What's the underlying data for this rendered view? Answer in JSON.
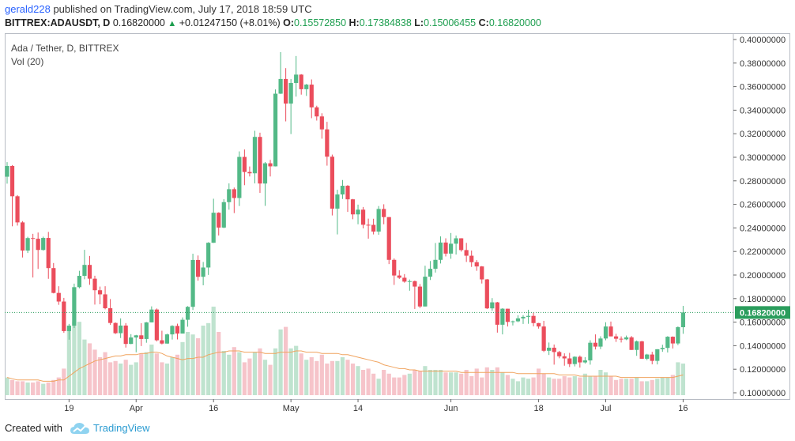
{
  "header": {
    "author": "gerald228",
    "published_text": "published on TradingView.com, July 17, 2018 18:59 UTC",
    "symbol_line": "BITTREX:ADAUSDT, D",
    "last_price": "0.16820000",
    "change_arrow": "▲",
    "change": "+0.01247150 (+8.01%)",
    "o_label": "O:",
    "o_value": "0.15572850",
    "h_label": "H:",
    "h_value": "0.17384838",
    "l_label": "L:",
    "l_value": "0.15006455",
    "c_label": "C:",
    "c_value": "0.16820000"
  },
  "overlay": {
    "title": "Ada / Tether, D, BITTREX",
    "volume_label": "Vol (20)"
  },
  "footer": {
    "created_with": "Created with",
    "brand": "TradingView"
  },
  "colors": {
    "up": "#26a69a",
    "up_candle": "#53b987",
    "down_candle": "#eb4d5c",
    "vol_up": "#bfe3cf",
    "vol_down": "#f6c4ca",
    "vol_ma": "#f0a35e",
    "last_price_bg": "#2a9d5c",
    "link": "#2962ff"
  },
  "chart_data": {
    "type": "candlestick",
    "symbol": "ADAUSDT",
    "interval": "D",
    "exchange": "BITTREX",
    "ylim": [
      0.1,
      0.4
    ],
    "y_ticks": [
      0.1,
      0.12,
      0.14,
      0.16,
      0.18,
      0.2,
      0.22,
      0.24,
      0.26,
      0.28,
      0.3,
      0.32,
      0.34,
      0.36,
      0.38,
      0.4
    ],
    "y_tick_labels": [
      "0.10000000",
      "0.12000000",
      "0.14000000",
      "0.16000000",
      "0.18000000",
      "0.20000000",
      "0.22000000",
      "0.24000000",
      "0.26000000",
      "0.28000000",
      "0.30000000",
      "0.32000000",
      "0.34000000",
      "0.36000000",
      "0.38000000",
      "0.40000000"
    ],
    "x_labels": [
      {
        "label": "19",
        "index": 12
      },
      {
        "label": "Apr",
        "index": 25
      },
      {
        "label": "16",
        "index": 40
      },
      {
        "label": "May",
        "index": 55
      },
      {
        "label": "14",
        "index": 68
      },
      {
        "label": "Jun",
        "index": 86
      },
      {
        "label": "18",
        "index": 103
      },
      {
        "label": "Jul",
        "index": 116
      },
      {
        "label": "16",
        "index": 131
      }
    ],
    "last_price": 0.1682,
    "last_price_label": "0.16820000",
    "close": [
      0.2926,
      0.2669,
      0.2447,
      0.2208,
      0.2314,
      0.2308,
      0.2213,
      0.2315,
      0.2059,
      0.1848,
      0.1775,
      0.1524,
      0.157,
      0.1897,
      0.1993,
      0.2086,
      0.1969,
      0.1871,
      0.1836,
      0.1718,
      0.1593,
      0.1506,
      0.1571,
      0.1415,
      0.147,
      0.1488,
      0.1457,
      0.1598,
      0.1707,
      0.1446,
      0.1418,
      0.1496,
      0.1568,
      0.1503,
      0.162,
      0.173,
      0.2128,
      0.1985,
      0.2064,
      0.2274,
      0.2529,
      0.2403,
      0.2619,
      0.2729,
      0.2654,
      0.3003,
      0.2875,
      0.2864,
      0.3173,
      0.2777,
      0.2949,
      0.2923,
      0.354,
      0.3665,
      0.3456,
      0.3631,
      0.3702,
      0.3578,
      0.3617,
      0.3424,
      0.3347,
      0.3237,
      0.3005,
      0.2564,
      0.2684,
      0.2758,
      0.2643,
      0.2515,
      0.2555,
      0.2427,
      0.2426,
      0.2369,
      0.2561,
      0.2492,
      0.2129,
      0.1996,
      0.1977,
      0.1944,
      0.1948,
      0.1902,
      0.1733,
      0.1986,
      0.2053,
      0.2129,
      0.2276,
      0.2182,
      0.2266,
      0.2312,
      0.2212,
      0.2164,
      0.2109,
      0.2073,
      0.1963,
      0.1717,
      0.1768,
      0.1578,
      0.1714,
      0.1602,
      0.1607,
      0.1632,
      0.1645,
      0.1653,
      0.1592,
      0.1563,
      0.1357,
      0.1383,
      0.1346,
      0.131,
      0.1292,
      0.1244,
      0.1306,
      0.1258,
      0.1275,
      0.1425,
      0.1392,
      0.1461,
      0.1563,
      0.1479,
      0.1459,
      0.1454,
      0.1471,
      0.1364,
      0.1437,
      0.1289,
      0.1325,
      0.1271,
      0.137,
      0.1381,
      0.1476,
      0.1419,
      0.1557,
      0.1682
    ],
    "ohlc": [
      [
        0.2835,
        0.2959,
        0.2776,
        0.2926
      ],
      [
        0.2926,
        0.2934,
        0.2414,
        0.2669
      ],
      [
        0.2669,
        0.2679,
        0.242,
        0.2447
      ],
      [
        0.2447,
        0.2458,
        0.2149,
        0.2208
      ],
      [
        0.2208,
        0.2325,
        0.2187,
        0.2314
      ],
      [
        0.2314,
        0.235,
        0.1979,
        0.2308
      ],
      [
        0.2308,
        0.2361,
        0.2052,
        0.2213
      ],
      [
        0.2213,
        0.2326,
        0.2207,
        0.2315
      ],
      [
        0.2315,
        0.2366,
        0.1968,
        0.2059
      ],
      [
        0.2059,
        0.2102,
        0.1844,
        0.1848
      ],
      [
        0.1848,
        0.1905,
        0.1747,
        0.1775
      ],
      [
        0.1775,
        0.1806,
        0.1509,
        0.1524
      ],
      [
        0.1524,
        0.1585,
        0.1451,
        0.157
      ],
      [
        0.157,
        0.1927,
        0.155,
        0.1897
      ],
      [
        0.1897,
        0.2036,
        0.1887,
        0.1993
      ],
      [
        0.1993,
        0.2214,
        0.1964,
        0.2086
      ],
      [
        0.2086,
        0.2162,
        0.1917,
        0.1969
      ],
      [
        0.1969,
        0.1994,
        0.1749,
        0.1871
      ],
      [
        0.1871,
        0.1902,
        0.1752,
        0.1836
      ],
      [
        0.1836,
        0.1905,
        0.1709,
        0.1718
      ],
      [
        0.1718,
        0.1796,
        0.1577,
        0.1593
      ],
      [
        0.1593,
        0.1598,
        0.1499,
        0.1506
      ],
      [
        0.1506,
        0.1632,
        0.1465,
        0.1571
      ],
      [
        0.1571,
        0.1592,
        0.1384,
        0.1415
      ],
      [
        0.1415,
        0.1498,
        0.1413,
        0.147
      ],
      [
        0.147,
        0.1492,
        0.1344,
        0.1488
      ],
      [
        0.1488,
        0.1591,
        0.1397,
        0.1457
      ],
      [
        0.1457,
        0.1601,
        0.1425,
        0.1598
      ],
      [
        0.1598,
        0.1734,
        0.1598,
        0.1707
      ],
      [
        0.1707,
        0.1716,
        0.1436,
        0.1446
      ],
      [
        0.1446,
        0.1527,
        0.1411,
        0.1418
      ],
      [
        0.1418,
        0.1502,
        0.1417,
        0.1496
      ],
      [
        0.1496,
        0.1574,
        0.1452,
        0.1568
      ],
      [
        0.1568,
        0.1587,
        0.1453,
        0.1503
      ],
      [
        0.1503,
        0.164,
        0.1503,
        0.162
      ],
      [
        0.162,
        0.1736,
        0.1561,
        0.173
      ],
      [
        0.173,
        0.2181,
        0.1703,
        0.2128
      ],
      [
        0.2128,
        0.2166,
        0.1952,
        0.1985
      ],
      [
        0.1985,
        0.2111,
        0.1913,
        0.2064
      ],
      [
        0.2064,
        0.2279,
        0.2001,
        0.2274
      ],
      [
        0.2274,
        0.2648,
        0.2273,
        0.2529
      ],
      [
        0.2529,
        0.2533,
        0.2336,
        0.2403
      ],
      [
        0.2403,
        0.2644,
        0.2398,
        0.2619
      ],
      [
        0.2619,
        0.2778,
        0.2555,
        0.2729
      ],
      [
        0.2729,
        0.2743,
        0.2526,
        0.2654
      ],
      [
        0.2654,
        0.305,
        0.2586,
        0.3003
      ],
      [
        0.3003,
        0.3066,
        0.2763,
        0.2875
      ],
      [
        0.2875,
        0.2922,
        0.2837,
        0.2864
      ],
      [
        0.2864,
        0.3225,
        0.2778,
        0.3173
      ],
      [
        0.3173,
        0.3209,
        0.2698,
        0.2777
      ],
      [
        0.2777,
        0.296,
        0.2587,
        0.2949
      ],
      [
        0.2949,
        0.2978,
        0.2837,
        0.2923
      ],
      [
        0.2923,
        0.3576,
        0.2922,
        0.354
      ],
      [
        0.354,
        0.3893,
        0.3538,
        0.3665
      ],
      [
        0.3665,
        0.3757,
        0.3305,
        0.3456
      ],
      [
        0.3456,
        0.3664,
        0.3197,
        0.3631
      ],
      [
        0.3631,
        0.386,
        0.3515,
        0.3702
      ],
      [
        0.3702,
        0.3706,
        0.3532,
        0.3578
      ],
      [
        0.3578,
        0.3623,
        0.3521,
        0.3617
      ],
      [
        0.3617,
        0.3661,
        0.3332,
        0.3424
      ],
      [
        0.3424,
        0.3438,
        0.3312,
        0.3347
      ],
      [
        0.3347,
        0.3374,
        0.3158,
        0.3237
      ],
      [
        0.3237,
        0.3301,
        0.2929,
        0.3005
      ],
      [
        0.3005,
        0.3023,
        0.2506,
        0.2564
      ],
      [
        0.2564,
        0.2724,
        0.2345,
        0.2684
      ],
      [
        0.2684,
        0.2807,
        0.2646,
        0.2758
      ],
      [
        0.2758,
        0.2764,
        0.2536,
        0.2643
      ],
      [
        0.2643,
        0.2646,
        0.2474,
        0.2515
      ],
      [
        0.2515,
        0.2598,
        0.2431,
        0.2555
      ],
      [
        0.2555,
        0.2578,
        0.2396,
        0.2427
      ],
      [
        0.2427,
        0.2479,
        0.2309,
        0.2426
      ],
      [
        0.2426,
        0.2478,
        0.2345,
        0.2369
      ],
      [
        0.2369,
        0.2586,
        0.2342,
        0.2561
      ],
      [
        0.2561,
        0.2601,
        0.2431,
        0.2492
      ],
      [
        0.2492,
        0.2492,
        0.2093,
        0.2129
      ],
      [
        0.2129,
        0.2141,
        0.1916,
        0.1996
      ],
      [
        0.1996,
        0.204,
        0.1967,
        0.1977
      ],
      [
        0.1977,
        0.2008,
        0.1935,
        0.1944
      ],
      [
        0.1944,
        0.1962,
        0.1867,
        0.1948
      ],
      [
        0.1948,
        0.1953,
        0.1712,
        0.1902
      ],
      [
        0.1902,
        0.1924,
        0.172,
        0.1733
      ],
      [
        0.1733,
        0.2079,
        0.1733,
        0.1986
      ],
      [
        0.1986,
        0.2119,
        0.1958,
        0.2053
      ],
      [
        0.2053,
        0.2272,
        0.2021,
        0.2129
      ],
      [
        0.2129,
        0.2328,
        0.2098,
        0.2276
      ],
      [
        0.2276,
        0.2312,
        0.2158,
        0.2182
      ],
      [
        0.2182,
        0.2357,
        0.2138,
        0.2266
      ],
      [
        0.2266,
        0.2335,
        0.2174,
        0.2312
      ],
      [
        0.2312,
        0.2313,
        0.2199,
        0.2212
      ],
      [
        0.2212,
        0.2273,
        0.2111,
        0.2164
      ],
      [
        0.2164,
        0.2208,
        0.2069,
        0.2109
      ],
      [
        0.2109,
        0.2127,
        0.2036,
        0.2073
      ],
      [
        0.2073,
        0.2076,
        0.1928,
        0.1963
      ],
      [
        0.1963,
        0.1967,
        0.1711,
        0.1717
      ],
      [
        0.1717,
        0.1804,
        0.1696,
        0.1768
      ],
      [
        0.1768,
        0.1772,
        0.1511,
        0.1578
      ],
      [
        0.1578,
        0.1719,
        0.1496,
        0.1714
      ],
      [
        0.1714,
        0.1714,
        0.1563,
        0.1602
      ],
      [
        0.1602,
        0.1613,
        0.1572,
        0.1607
      ],
      [
        0.1607,
        0.1658,
        0.16,
        0.1632
      ],
      [
        0.1632,
        0.1659,
        0.1585,
        0.1645
      ],
      [
        0.1645,
        0.1705,
        0.1586,
        0.1653
      ],
      [
        0.1653,
        0.168,
        0.1564,
        0.1592
      ],
      [
        0.1592,
        0.1594,
        0.1545,
        0.1563
      ],
      [
        0.1563,
        0.1611,
        0.1346,
        0.1357
      ],
      [
        0.1357,
        0.1427,
        0.1321,
        0.1383
      ],
      [
        0.1383,
        0.141,
        0.1239,
        0.1346
      ],
      [
        0.1346,
        0.1356,
        0.1293,
        0.131
      ],
      [
        0.131,
        0.1335,
        0.123,
        0.1292
      ],
      [
        0.1292,
        0.1339,
        0.1219,
        0.1244
      ],
      [
        0.1244,
        0.131,
        0.1224,
        0.1306
      ],
      [
        0.1306,
        0.1317,
        0.1214,
        0.1258
      ],
      [
        0.1258,
        0.1303,
        0.1248,
        0.1275
      ],
      [
        0.1275,
        0.1446,
        0.1239,
        0.1425
      ],
      [
        0.1425,
        0.1496,
        0.1368,
        0.1392
      ],
      [
        0.1392,
        0.148,
        0.1371,
        0.1461
      ],
      [
        0.1461,
        0.1599,
        0.1446,
        0.1563
      ],
      [
        0.1563,
        0.1605,
        0.1479,
        0.1479
      ],
      [
        0.1479,
        0.1501,
        0.1432,
        0.1459
      ],
      [
        0.1459,
        0.1479,
        0.1427,
        0.1454
      ],
      [
        0.1454,
        0.1486,
        0.1447,
        0.1471
      ],
      [
        0.1471,
        0.1482,
        0.1364,
        0.1364
      ],
      [
        0.1364,
        0.1444,
        0.1314,
        0.1437
      ],
      [
        0.1437,
        0.1441,
        0.1287,
        0.1289
      ],
      [
        0.1289,
        0.1331,
        0.1277,
        0.1325
      ],
      [
        0.1325,
        0.1348,
        0.1242,
        0.1271
      ],
      [
        0.1271,
        0.137,
        0.1241,
        0.137
      ],
      [
        0.137,
        0.1408,
        0.1348,
        0.1381
      ],
      [
        0.1381,
        0.1481,
        0.1342,
        0.1476
      ],
      [
        0.1476,
        0.1479,
        0.1376,
        0.1419
      ],
      [
        0.1419,
        0.1564,
        0.1405,
        0.1557
      ],
      [
        0.1557,
        0.1738,
        0.1501,
        0.1682
      ]
    ],
    "volume": [
      14,
      12,
      11,
      11,
      10,
      10,
      11,
      9,
      10,
      12,
      14,
      21,
      52,
      58,
      58,
      44,
      41,
      36,
      30,
      34,
      26,
      27,
      25,
      28,
      24,
      26,
      33,
      34,
      40,
      33,
      26,
      25,
      30,
      32,
      42,
      50,
      48,
      45,
      55,
      57,
      70,
      50,
      35,
      32,
      38,
      34,
      26,
      29,
      34,
      37,
      28,
      24,
      37,
      52,
      54,
      37,
      39,
      33,
      28,
      30,
      27,
      32,
      25,
      27,
      27,
      30,
      28,
      25,
      23,
      20,
      21,
      17,
      13,
      20,
      17,
      14,
      14,
      16,
      17,
      20,
      19,
      23,
      20,
      20,
      20,
      18,
      18,
      18,
      17,
      20,
      15,
      21,
      14,
      22,
      20,
      22,
      18,
      16,
      13,
      11,
      14,
      13,
      14,
      21,
      17,
      14,
      13,
      13,
      15,
      14,
      15,
      14,
      17,
      15,
      15,
      20,
      18,
      15,
      12,
      13,
      13,
      13,
      14,
      11,
      11,
      12,
      13,
      14,
      14,
      16,
      26,
      25
    ],
    "volume_ma": [
      14,
      13,
      12,
      12,
      12,
      12,
      12,
      11,
      11,
      11,
      12,
      12,
      15,
      18,
      21,
      23,
      25,
      27,
      28,
      29,
      30,
      31,
      31,
      32,
      32,
      32,
      33,
      33,
      34,
      34,
      33,
      31,
      30,
      29,
      28,
      29,
      29,
      30,
      30,
      32,
      33,
      34,
      34,
      35,
      35,
      35,
      34,
      34,
      34,
      34,
      33,
      33,
      33,
      34,
      34,
      34,
      35,
      35,
      34,
      34,
      34,
      33,
      33,
      33,
      33,
      32,
      32,
      31,
      30,
      29,
      28,
      27,
      26,
      24,
      23,
      22,
      21,
      21,
      20,
      20,
      19,
      19,
      19,
      19,
      19,
      19,
      19,
      19,
      18,
      18,
      18,
      18,
      18,
      18,
      18,
      18,
      18,
      18,
      18,
      17,
      17,
      17,
      17,
      17,
      17,
      17,
      17,
      16,
      16,
      16,
      16,
      15,
      15,
      15,
      15,
      15,
      15,
      15,
      15,
      14,
      14,
      14,
      14,
      14,
      14,
      14,
      14,
      14,
      14,
      14,
      15,
      16
    ]
  }
}
